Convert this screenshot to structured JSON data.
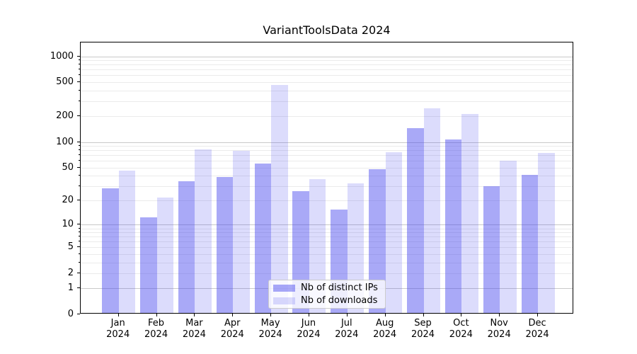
{
  "title": "VariantToolsData 2024",
  "chart_data": {
    "type": "bar",
    "title": "VariantToolsData 2024",
    "categories": [
      "Jan 2024",
      "Feb 2024",
      "Mar 2024",
      "Apr 2024",
      "May 2024",
      "Jun 2024",
      "Jul 2024",
      "Aug 2024",
      "Sep 2024",
      "Oct 2024",
      "Nov 2024",
      "Dec 2024"
    ],
    "series": [
      {
        "name": "Nb of distinct IPs",
        "color": "#4444ee",
        "alpha": 0.46,
        "values": [
          27,
          12,
          33,
          37,
          54,
          25,
          15,
          46,
          140,
          102,
          29,
          39
        ]
      },
      {
        "name": "Nb of downloads",
        "color": "#4444ee",
        "alpha": 0.19,
        "values": [
          44,
          21,
          78,
          76,
          445,
          35,
          31,
          73,
          240,
          206,
          58,
          72
        ]
      }
    ],
    "xlabel": "",
    "ylabel": "",
    "yscale": "log1p",
    "y_tick_values": [
      0,
      1,
      2,
      5,
      10,
      20,
      50,
      100,
      200,
      500,
      1000
    ],
    "y_minor_grid_values": [
      2,
      3,
      4,
      5,
      6,
      7,
      8,
      9,
      20,
      30,
      40,
      50,
      60,
      70,
      80,
      90,
      200,
      300,
      400,
      500,
      600,
      700,
      800,
      900
    ],
    "y_major_grid_values": [
      1,
      10,
      100,
      1000
    ],
    "ylim": [
      0,
      1450
    ],
    "grid": true,
    "legend_position": "lower center"
  },
  "style": {
    "grid_minor_color": "#ebebeb",
    "grid_major_color": "#c9c9c9",
    "axis_color": "#000000",
    "legend_background": "rgba(255,255,255,0.8)",
    "legend_border": "#cccccc",
    "bar_dark_rendered": "#a9a9f7",
    "bar_light_rendered": "#d9d9f8"
  }
}
